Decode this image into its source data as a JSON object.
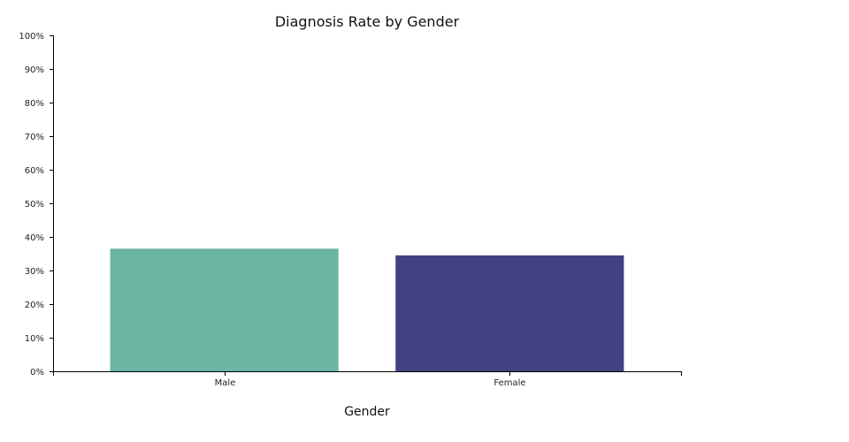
{
  "chart_data": {
    "type": "bar",
    "title": "Diagnosis Rate by Gender",
    "xlabel": "Gender",
    "ylabel": "",
    "categories": [
      "Male",
      "Female"
    ],
    "values": [
      0.365,
      0.345
    ],
    "colors": [
      "#6bb5a3",
      "#434183"
    ],
    "ylim": [
      0,
      1
    ],
    "yticks": [
      0,
      0.1,
      0.2,
      0.3,
      0.4,
      0.5,
      0.6,
      0.7,
      0.8,
      0.9,
      1.0
    ],
    "ytick_labels": [
      "0%",
      "10%",
      "20%",
      "30%",
      "40%",
      "50%",
      "60%",
      "70%",
      "80%",
      "90%",
      "100%"
    ],
    "grid": false,
    "legend": "none"
  }
}
